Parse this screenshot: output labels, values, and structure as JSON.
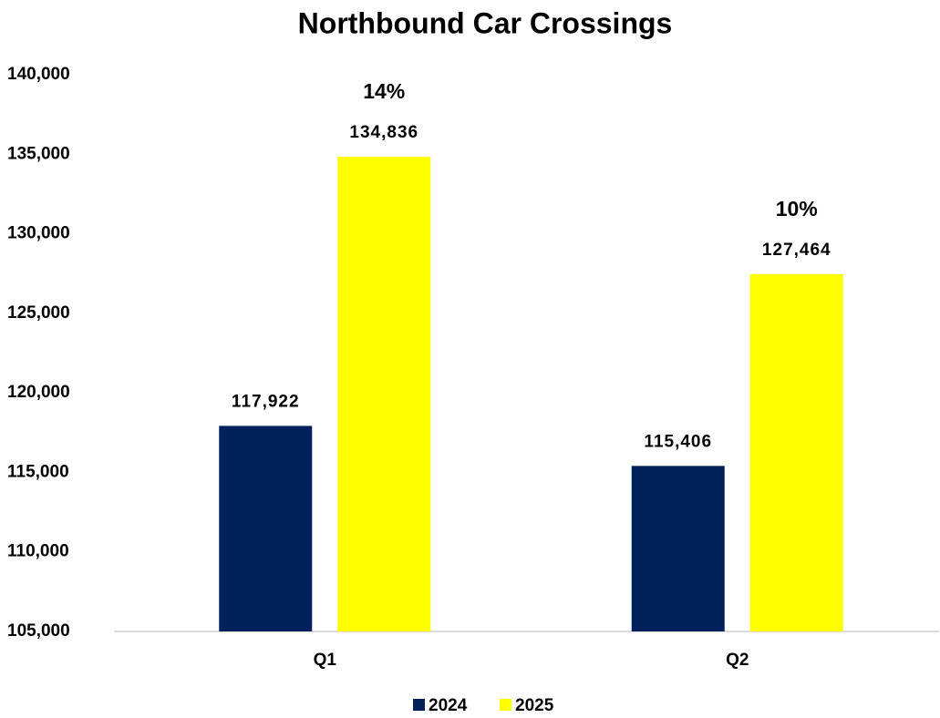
{
  "chart_data": {
    "type": "bar",
    "title": "Northbound Car Crossings",
    "categories": [
      "Q1",
      "Q2"
    ],
    "series": [
      {
        "name": "2024",
        "color": "#00205b",
        "values": [
          117922,
          115406
        ],
        "value_labels": [
          "117,922",
          "115,406"
        ]
      },
      {
        "name": "2025",
        "color": "#ffff00",
        "values": [
          134836,
          127464
        ],
        "value_labels": [
          "134,836",
          "127,464"
        ]
      }
    ],
    "annotations": [
      "14%",
      "10%"
    ],
    "ylim": [
      105000,
      140000
    ],
    "yticks": [
      {
        "value": 105000,
        "label": "105,000"
      },
      {
        "value": 110000,
        "label": "110,000"
      },
      {
        "value": 115000,
        "label": "115,000"
      },
      {
        "value": 120000,
        "label": "120,000"
      },
      {
        "value": 125000,
        "label": "125,000"
      },
      {
        "value": 130000,
        "label": "130,000"
      },
      {
        "value": 135000,
        "label": "135,000"
      },
      {
        "value": 140000,
        "label": "140,000"
      }
    ],
    "legend": "bottom"
  }
}
